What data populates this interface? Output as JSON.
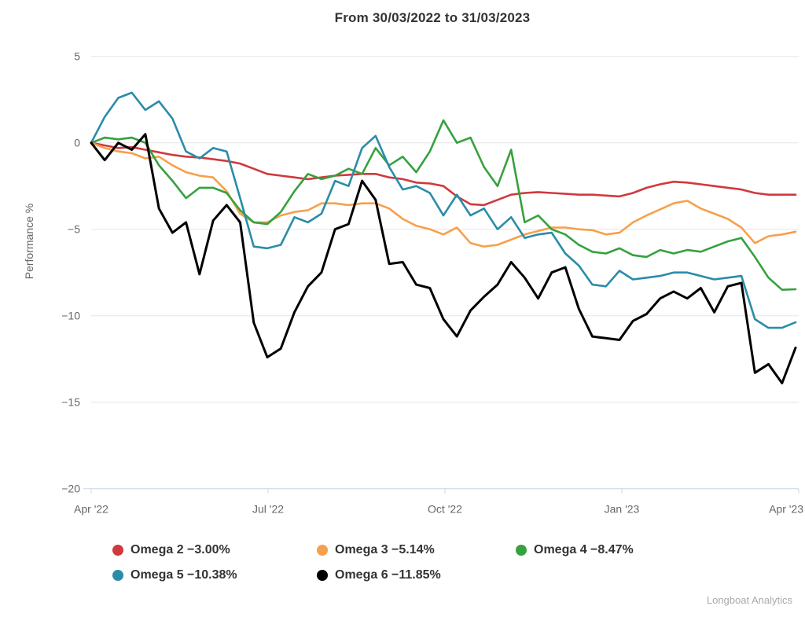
{
  "watermark": "Longboat Analytics",
  "colors": {
    "background": "#ffffff",
    "grid": "#e6e6e6",
    "axis_line": "#ccd6eb",
    "axis_text": "#666666",
    "title_text": "#333333",
    "legend_text": "#333333",
    "watermark_text": "#aaaaaa"
  },
  "chart_data": {
    "type": "line",
    "title": "From 30/03/2022 to 31/03/2023",
    "xlabel": "",
    "ylabel": "Performance %",
    "ylim": [
      -20,
      5
    ],
    "yticks": [
      5,
      0,
      -5,
      -10,
      -15,
      -20
    ],
    "ytick_labels": [
      "5",
      "0",
      "−5",
      "−10",
      "−15",
      "−20"
    ],
    "xtick_labels": [
      "Apr '22",
      "Jul '22",
      "Oct '22",
      "Jan '23",
      "Apr '23"
    ],
    "grid": "horizontal-only",
    "legend_position": "bottom",
    "x_unit": "weeks from 30/03/2022 to 31/03/2023 (values in Performance %)",
    "series": [
      {
        "name": "Omega 2",
        "final": "−3.00%",
        "legend_label": "Omega 2 −3.00%",
        "color": "#d0393e",
        "line_width": 2.6,
        "values": [
          0,
          -0.15,
          -0.3,
          -0.25,
          -0.4,
          -0.55,
          -0.7,
          -0.8,
          -0.85,
          -0.95,
          -1.05,
          -1.2,
          -1.5,
          -1.8,
          -1.9,
          -2.0,
          -2.1,
          -2.0,
          -1.9,
          -1.85,
          -1.8,
          -1.8,
          -2.0,
          -2.1,
          -2.3,
          -2.35,
          -2.5,
          -3.1,
          -3.55,
          -3.6,
          -3.3,
          -3.0,
          -2.9,
          -2.85,
          -2.9,
          -2.95,
          -3.0,
          -3.0,
          -3.05,
          -3.1,
          -2.9,
          -2.6,
          -2.4,
          -2.25,
          -2.3,
          -2.4,
          -2.5,
          -2.6,
          -2.7,
          -2.9,
          -3.0,
          -3.0,
          -3.0
        ]
      },
      {
        "name": "Omega 3",
        "final": "−5.14%",
        "legend_label": "Omega 3 −5.14%",
        "color": "#f7a04b",
        "line_width": 2.6,
        "values": [
          0,
          -0.3,
          -0.5,
          -0.6,
          -0.9,
          -0.8,
          -1.3,
          -1.7,
          -1.9,
          -2.0,
          -2.8,
          -4.1,
          -4.6,
          -4.6,
          -4.2,
          -4.0,
          -3.9,
          -3.5,
          -3.5,
          -3.6,
          -3.5,
          -3.5,
          -3.8,
          -4.4,
          -4.8,
          -5.0,
          -5.3,
          -4.9,
          -5.8,
          -6.0,
          -5.9,
          -5.6,
          -5.3,
          -5.1,
          -4.9,
          -4.9,
          -5.0,
          -5.05,
          -5.3,
          -5.2,
          -4.6,
          -4.2,
          -3.85,
          -3.5,
          -3.35,
          -3.8,
          -4.1,
          -4.4,
          -4.9,
          -5.8,
          -5.4,
          -5.3,
          -5.14
        ]
      },
      {
        "name": "Omega 4",
        "final": "−8.47%",
        "legend_label": "Omega 4 −8.47%",
        "color": "#36a13e",
        "line_width": 2.6,
        "values": [
          0,
          0.3,
          0.2,
          0.3,
          0.0,
          -1.3,
          -2.2,
          -3.2,
          -2.6,
          -2.6,
          -2.9,
          -3.9,
          -4.6,
          -4.7,
          -4.0,
          -2.8,
          -1.8,
          -2.1,
          -1.9,
          -1.5,
          -1.8,
          -0.3,
          -1.3,
          -0.8,
          -1.7,
          -0.5,
          1.3,
          0.0,
          0.3,
          -1.4,
          -2.5,
          -0.4,
          -4.6,
          -4.2,
          -5.0,
          -5.3,
          -5.9,
          -6.3,
          -6.4,
          -6.1,
          -6.5,
          -6.6,
          -6.2,
          -6.4,
          -6.2,
          -6.3,
          -6.0,
          -5.7,
          -5.5,
          -6.6,
          -7.8,
          -8.5,
          -8.47
        ]
      },
      {
        "name": "Omega 5",
        "final": "−10.38%",
        "legend_label": "Omega 5 −10.38%",
        "color": "#2b8ca8",
        "line_width": 2.6,
        "values": [
          0,
          1.5,
          2.6,
          2.9,
          1.9,
          2.4,
          1.4,
          -0.5,
          -0.9,
          -0.3,
          -0.5,
          -3.2,
          -6.0,
          -6.1,
          -5.9,
          -4.3,
          -4.6,
          -4.1,
          -2.2,
          -2.5,
          -0.3,
          0.4,
          -1.4,
          -2.7,
          -2.5,
          -2.9,
          -4.2,
          -3.0,
          -4.2,
          -3.8,
          -5.0,
          -4.3,
          -5.5,
          -5.3,
          -5.2,
          -6.4,
          -7.1,
          -8.2,
          -8.3,
          -7.4,
          -7.9,
          -7.8,
          -7.7,
          -7.5,
          -7.5,
          -7.7,
          -7.9,
          -7.8,
          -7.7,
          -10.2,
          -10.7,
          -10.7,
          -10.38
        ]
      },
      {
        "name": "Omega 6",
        "final": "−11.85%",
        "legend_label": "Omega 6 −11.85%",
        "color": "#000000",
        "line_width": 3,
        "values": [
          0,
          -1.0,
          0.0,
          -0.4,
          0.5,
          -3.8,
          -5.2,
          -4.6,
          -7.6,
          -4.5,
          -3.6,
          -4.6,
          -10.4,
          -12.4,
          -11.9,
          -9.8,
          -8.3,
          -7.5,
          -5.0,
          -4.7,
          -2.2,
          -3.3,
          -7.0,
          -6.9,
          -8.2,
          -8.4,
          -10.2,
          -11.2,
          -9.7,
          -8.9,
          -8.2,
          -6.9,
          -7.8,
          -9.0,
          -7.5,
          -7.2,
          -9.6,
          -11.2,
          -11.3,
          -11.4,
          -10.3,
          -9.9,
          -9.0,
          -8.6,
          -9.0,
          -8.4,
          -9.8,
          -8.3,
          -8.1,
          -13.3,
          -12.8,
          -13.9,
          -11.85
        ]
      }
    ]
  }
}
